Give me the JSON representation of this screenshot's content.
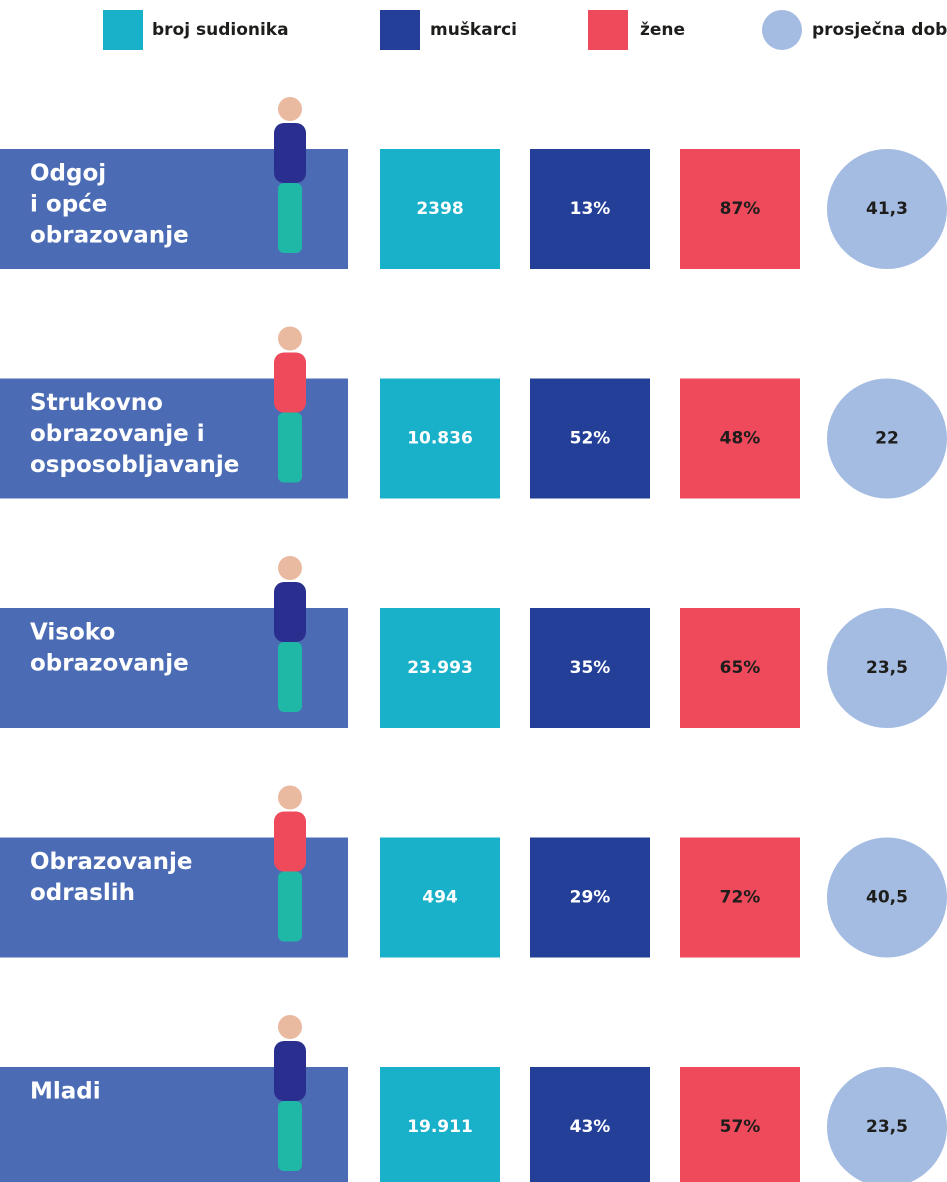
{
  "legend": [
    {
      "label": "broj sudionika",
      "color": "#19b0c9"
    },
    {
      "label": "muškarci",
      "color": "#243f97"
    },
    {
      "label": "žene",
      "color": "#ee4a5c"
    },
    {
      "label": "prosječna dob",
      "color": "#a4bbe2"
    }
  ],
  "rows": [
    {
      "label_lines": [
        "Odgoj",
        "i opće",
        "obrazovanje"
      ],
      "participants": "2398",
      "men": "13%",
      "women": "87%",
      "average_age": "41,3"
    },
    {
      "label_lines": [
        "Strukovno",
        "obrazovanje i",
        "osposobljavanje"
      ],
      "participants": "10.836",
      "men": "52%",
      "women": "48%",
      "average_age": "22"
    },
    {
      "label_lines": [
        "Visoko",
        "obrazovanje"
      ],
      "participants": "23.993",
      "men": "35%",
      "women": "65%",
      "average_age": "23,5"
    },
    {
      "label_lines": [
        "Obrazovanje",
        "odraslih"
      ],
      "participants": "494",
      "men": "29%",
      "women": "72%",
      "average_age": "40,5"
    },
    {
      "label_lines": [
        "Mladi"
      ],
      "participants": "19.911",
      "men": "43%",
      "women": "57%",
      "average_age": "23,5"
    }
  ]
}
